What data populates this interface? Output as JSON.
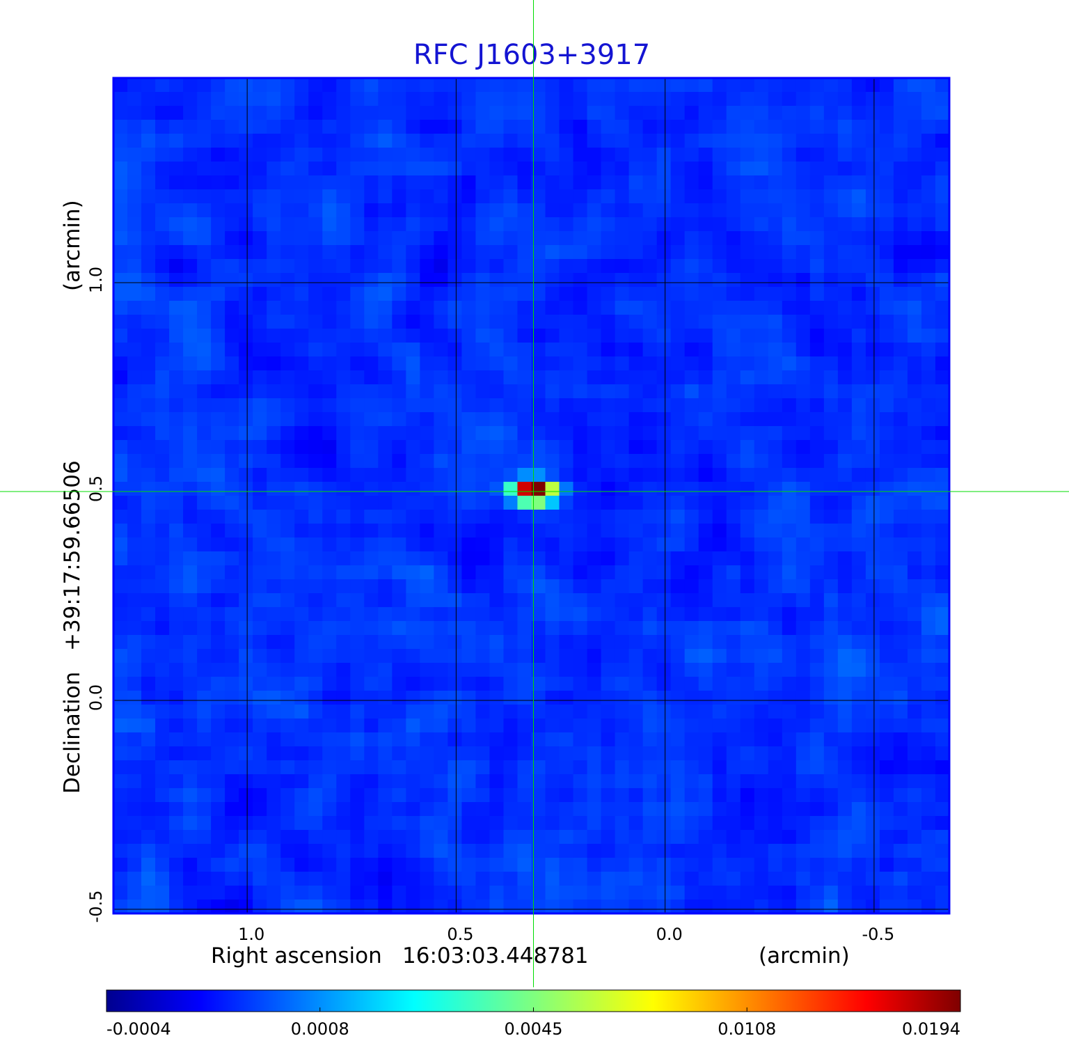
{
  "chart_data": {
    "type": "heatmap",
    "title": "RFC J1603+3917",
    "xlabel": {
      "name": "Right ascension",
      "center": "16:03:03.448781",
      "unit": "(arcmin)"
    },
    "ylabel": {
      "name": "Declination",
      "center": "+39:17:59.66506",
      "unit": "(arcmin)"
    },
    "x_ticks": [
      "1.0",
      "0.5",
      "0.0",
      "-0.5"
    ],
    "x_tick_values": [
      1.0,
      0.5,
      0.0,
      -0.5
    ],
    "y_ticks": [
      "1.0",
      "0.5",
      "0.0",
      "-0.5"
    ],
    "y_tick_values": [
      1.0,
      0.5,
      0.0,
      -0.5
    ],
    "xlim": [
      1.32,
      -0.68
    ],
    "ylim": [
      -0.51,
      1.49
    ],
    "grid": true,
    "crosshair": {
      "x": 0.315,
      "y": 0.5
    },
    "source": {
      "x": 0.315,
      "y": 0.5,
      "peak": 0.0194
    },
    "colorbar": {
      "ticks": [
        "-0.0004",
        "0.0008",
        "0.0045",
        "0.0108",
        "0.0194"
      ],
      "range": [
        -0.0004,
        0.0194
      ],
      "colormap": "jet"
    },
    "colors": {
      "title": "#1414d2",
      "grid": "#000000",
      "crosshair": "#00dd00",
      "frame": "#0000ff"
    }
  }
}
